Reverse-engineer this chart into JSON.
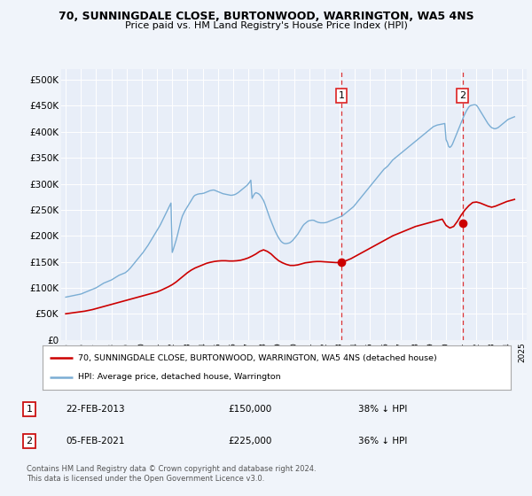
{
  "title1": "70, SUNNINGDALE CLOSE, BURTONWOOD, WARRINGTON, WA5 4NS",
  "title2": "Price paid vs. HM Land Registry's House Price Index (HPI)",
  "bg_color": "#f0f4fa",
  "plot_bg": "#e8eef8",
  "red_color": "#cc0000",
  "blue_color": "#7aadd4",
  "vline_color": "#dd2222",
  "grid_color": "#ffffff",
  "ylim": [
    0,
    520000
  ],
  "yticks": [
    0,
    50000,
    100000,
    150000,
    200000,
    250000,
    300000,
    350000,
    400000,
    450000,
    500000
  ],
  "ytick_labels": [
    "£0",
    "£50K",
    "£100K",
    "£150K",
    "£200K",
    "£250K",
    "£300K",
    "£350K",
    "£400K",
    "£450K",
    "£500K"
  ],
  "sale1_date": 2013.13,
  "sale1_price": 150000,
  "sale2_date": 2021.09,
  "sale2_price": 225000,
  "legend_label1": "70, SUNNINGDALE CLOSE, BURTONWOOD, WARRINGTON, WA5 4NS (detached house)",
  "legend_label2": "HPI: Average price, detached house, Warrington",
  "footnote": "Contains HM Land Registry data © Crown copyright and database right 2024.\nThis data is licensed under the Open Government Licence v3.0.",
  "table_entries": [
    {
      "num": "1",
      "date": "22-FEB-2013",
      "price": "£150,000",
      "hpi": "38% ↓ HPI"
    },
    {
      "num": "2",
      "date": "05-FEB-2021",
      "price": "£225,000",
      "hpi": "36% ↓ HPI"
    }
  ],
  "hpi_years": [
    1995.0,
    1995.083,
    1995.167,
    1995.25,
    1995.333,
    1995.417,
    1995.5,
    1995.583,
    1995.667,
    1995.75,
    1995.833,
    1995.917,
    1996.0,
    1996.083,
    1996.167,
    1996.25,
    1996.333,
    1996.417,
    1996.5,
    1996.583,
    1996.667,
    1996.75,
    1996.833,
    1996.917,
    1997.0,
    1997.083,
    1997.167,
    1997.25,
    1997.333,
    1997.417,
    1997.5,
    1997.583,
    1997.667,
    1997.75,
    1997.833,
    1997.917,
    1998.0,
    1998.083,
    1998.167,
    1998.25,
    1998.333,
    1998.417,
    1998.5,
    1998.583,
    1998.667,
    1998.75,
    1998.833,
    1998.917,
    1999.0,
    1999.083,
    1999.167,
    1999.25,
    1999.333,
    1999.417,
    1999.5,
    1999.583,
    1999.667,
    1999.75,
    1999.833,
    1999.917,
    2000.0,
    2000.083,
    2000.167,
    2000.25,
    2000.333,
    2000.417,
    2000.5,
    2000.583,
    2000.667,
    2000.75,
    2000.833,
    2000.917,
    2001.0,
    2001.083,
    2001.167,
    2001.25,
    2001.333,
    2001.417,
    2001.5,
    2001.583,
    2001.667,
    2001.75,
    2001.833,
    2001.917,
    2002.0,
    2002.083,
    2002.167,
    2002.25,
    2002.333,
    2002.417,
    2002.5,
    2002.583,
    2002.667,
    2002.75,
    2002.833,
    2002.917,
    2003.0,
    2003.083,
    2003.167,
    2003.25,
    2003.333,
    2003.417,
    2003.5,
    2003.583,
    2003.667,
    2003.75,
    2003.833,
    2003.917,
    2004.0,
    2004.083,
    2004.167,
    2004.25,
    2004.333,
    2004.417,
    2004.5,
    2004.583,
    2004.667,
    2004.75,
    2004.833,
    2004.917,
    2005.0,
    2005.083,
    2005.167,
    2005.25,
    2005.333,
    2005.417,
    2005.5,
    2005.583,
    2005.667,
    2005.75,
    2005.833,
    2005.917,
    2006.0,
    2006.083,
    2006.167,
    2006.25,
    2006.333,
    2006.417,
    2006.5,
    2006.583,
    2006.667,
    2006.75,
    2006.833,
    2006.917,
    2007.0,
    2007.083,
    2007.167,
    2007.25,
    2007.333,
    2007.417,
    2007.5,
    2007.583,
    2007.667,
    2007.75,
    2007.833,
    2007.917,
    2008.0,
    2008.083,
    2008.167,
    2008.25,
    2008.333,
    2008.417,
    2008.5,
    2008.583,
    2008.667,
    2008.75,
    2008.833,
    2008.917,
    2009.0,
    2009.083,
    2009.167,
    2009.25,
    2009.333,
    2009.417,
    2009.5,
    2009.583,
    2009.667,
    2009.75,
    2009.833,
    2009.917,
    2010.0,
    2010.083,
    2010.167,
    2010.25,
    2010.333,
    2010.417,
    2010.5,
    2010.583,
    2010.667,
    2010.75,
    2010.833,
    2010.917,
    2011.0,
    2011.083,
    2011.167,
    2011.25,
    2011.333,
    2011.417,
    2011.5,
    2011.583,
    2011.667,
    2011.75,
    2011.833,
    2011.917,
    2012.0,
    2012.083,
    2012.167,
    2012.25,
    2012.333,
    2012.417,
    2012.5,
    2012.583,
    2012.667,
    2012.75,
    2012.833,
    2012.917,
    2013.0,
    2013.083,
    2013.167,
    2013.25,
    2013.333,
    2013.417,
    2013.5,
    2013.583,
    2013.667,
    2013.75,
    2013.833,
    2013.917,
    2014.0,
    2014.083,
    2014.167,
    2014.25,
    2014.333,
    2014.417,
    2014.5,
    2014.583,
    2014.667,
    2014.75,
    2014.833,
    2014.917,
    2015.0,
    2015.083,
    2015.167,
    2015.25,
    2015.333,
    2015.417,
    2015.5,
    2015.583,
    2015.667,
    2015.75,
    2015.833,
    2015.917,
    2016.0,
    2016.083,
    2016.167,
    2016.25,
    2016.333,
    2016.417,
    2016.5,
    2016.583,
    2016.667,
    2016.75,
    2016.833,
    2016.917,
    2017.0,
    2017.083,
    2017.167,
    2017.25,
    2017.333,
    2017.417,
    2017.5,
    2017.583,
    2017.667,
    2017.75,
    2017.833,
    2017.917,
    2018.0,
    2018.083,
    2018.167,
    2018.25,
    2018.333,
    2018.417,
    2018.5,
    2018.583,
    2018.667,
    2018.75,
    2018.833,
    2018.917,
    2019.0,
    2019.083,
    2019.167,
    2019.25,
    2019.333,
    2019.417,
    2019.5,
    2019.583,
    2019.667,
    2019.75,
    2019.833,
    2019.917,
    2020.0,
    2020.083,
    2020.167,
    2020.25,
    2020.333,
    2020.417,
    2020.5,
    2020.583,
    2020.667,
    2020.75,
    2020.833,
    2020.917,
    2021.0,
    2021.083,
    2021.167,
    2021.25,
    2021.333,
    2021.417,
    2021.5,
    2021.583,
    2021.667,
    2021.75,
    2021.833,
    2021.917,
    2022.0,
    2022.083,
    2022.167,
    2022.25,
    2022.333,
    2022.417,
    2022.5,
    2022.583,
    2022.667,
    2022.75,
    2022.833,
    2022.917,
    2023.0,
    2023.083,
    2023.167,
    2023.25,
    2023.333,
    2023.417,
    2023.5,
    2023.583,
    2023.667,
    2023.75,
    2023.833,
    2023.917,
    2024.0,
    2024.083,
    2024.167,
    2024.25,
    2024.333,
    2024.417,
    2024.5
  ],
  "hpi_values": [
    82000,
    82500,
    83000,
    83500,
    84000,
    84500,
    85000,
    85500,
    86000,
    86500,
    87000,
    87500,
    88000,
    89000,
    90000,
    91000,
    92000,
    93000,
    94000,
    95000,
    96000,
    97000,
    98000,
    99000,
    100000,
    101500,
    103000,
    104500,
    106000,
    107500,
    109000,
    110000,
    111000,
    112000,
    113000,
    114000,
    115000,
    116500,
    118000,
    119500,
    121000,
    122500,
    124000,
    125000,
    126000,
    127000,
    128000,
    129000,
    131000,
    133000,
    135500,
    138000,
    141000,
    144000,
    147000,
    150000,
    153000,
    156000,
    159000,
    162000,
    165000,
    168000,
    171500,
    175000,
    178500,
    182000,
    186000,
    190000,
    194000,
    198000,
    202000,
    206000,
    210000,
    214000,
    218500,
    223000,
    228000,
    233000,
    238000,
    243000,
    248000,
    253000,
    258000,
    263000,
    168000,
    175000,
    183000,
    191000,
    200000,
    210000,
    220000,
    230000,
    238000,
    243000,
    248000,
    252000,
    256000,
    260000,
    264000,
    268000,
    272000,
    276000,
    278000,
    279000,
    280000,
    280500,
    281000,
    281000,
    281500,
    282000,
    283000,
    284000,
    285000,
    286000,
    287000,
    287500,
    288000,
    288000,
    287000,
    286000,
    285000,
    284000,
    283000,
    282000,
    281000,
    280500,
    280000,
    279500,
    279000,
    278500,
    278000,
    278000,
    278500,
    279000,
    280000,
    281500,
    283000,
    285000,
    287000,
    289000,
    291000,
    293000,
    295000,
    297000,
    300000,
    303000,
    307000,
    272000,
    277000,
    281000,
    283000,
    282000,
    281000,
    279000,
    276000,
    272000,
    268000,
    262000,
    255000,
    248000,
    241000,
    234000,
    228000,
    222000,
    216000,
    210000,
    205000,
    200000,
    196000,
    192000,
    189000,
    187000,
    185500,
    185000,
    185000,
    185500,
    186000,
    187000,
    189000,
    191000,
    194000,
    197000,
    200000,
    203000,
    207000,
    211000,
    215000,
    219000,
    222000,
    224000,
    226000,
    228000,
    229000,
    229500,
    230000,
    230000,
    229500,
    228000,
    227000,
    226000,
    225500,
    225000,
    225000,
    225000,
    225000,
    225500,
    226000,
    227000,
    228000,
    229000,
    230000,
    231000,
    232000,
    233000,
    234000,
    235000,
    236000,
    237000,
    238000,
    240000,
    242000,
    244000,
    246000,
    248000,
    250000,
    252000,
    254000,
    256000,
    259000,
    262000,
    265000,
    268000,
    271000,
    274000,
    277000,
    280000,
    283000,
    286000,
    289000,
    292000,
    295000,
    298000,
    301000,
    304000,
    307000,
    310000,
    313000,
    316000,
    319000,
    322000,
    325000,
    328000,
    330000,
    332000,
    334000,
    337000,
    340000,
    343000,
    346000,
    348000,
    350000,
    352000,
    354000,
    356000,
    358000,
    360000,
    362000,
    364000,
    366000,
    368000,
    370000,
    372000,
    374000,
    376000,
    378000,
    380000,
    382000,
    384000,
    386000,
    388000,
    390000,
    392000,
    394000,
    396000,
    398000,
    400000,
    402000,
    404000,
    406000,
    408000,
    410000,
    411000,
    412000,
    413000,
    413500,
    414000,
    414500,
    415000,
    415500,
    416000,
    385000,
    380000,
    372000,
    370000,
    372000,
    376000,
    382000,
    388000,
    394000,
    400000,
    406000,
    412000,
    418000,
    424000,
    430000,
    435000,
    440000,
    444000,
    448000,
    450000,
    451000,
    451500,
    452000,
    452000,
    451000,
    448000,
    444000,
    440000,
    436000,
    432000,
    428000,
    424000,
    420000,
    416000,
    413000,
    410000,
    408000,
    407000,
    406000,
    406000,
    407000,
    408000,
    410000,
    412000,
    414000,
    416000,
    418000,
    420000,
    422000,
    424000,
    425000,
    426000,
    427000,
    428000,
    429000
  ],
  "prop_years": [
    1995.0,
    1995.25,
    1995.5,
    1995.75,
    1996.0,
    1996.25,
    1996.5,
    1996.75,
    1997.0,
    1997.25,
    1997.5,
    1997.75,
    1998.0,
    1998.25,
    1998.5,
    1998.75,
    1999.0,
    1999.25,
    1999.5,
    1999.75,
    2000.0,
    2000.25,
    2000.5,
    2000.75,
    2001.0,
    2001.25,
    2001.5,
    2001.75,
    2002.0,
    2002.25,
    2002.5,
    2002.75,
    2003.0,
    2003.25,
    2003.5,
    2003.75,
    2004.0,
    2004.25,
    2004.5,
    2004.75,
    2005.0,
    2005.25,
    2005.5,
    2005.75,
    2006.0,
    2006.25,
    2006.5,
    2006.75,
    2007.0,
    2007.25,
    2007.5,
    2007.75,
    2008.0,
    2008.25,
    2008.5,
    2008.75,
    2009.0,
    2009.25,
    2009.5,
    2009.75,
    2010.0,
    2010.25,
    2010.5,
    2010.75,
    2011.0,
    2011.25,
    2011.5,
    2011.75,
    2012.0,
    2012.25,
    2012.5,
    2012.75,
    2013.0,
    2013.25,
    2013.5,
    2013.75,
    2014.0,
    2014.25,
    2014.5,
    2014.75,
    2015.0,
    2015.25,
    2015.5,
    2015.75,
    2016.0,
    2016.25,
    2016.5,
    2016.75,
    2017.0,
    2017.25,
    2017.5,
    2017.75,
    2018.0,
    2018.25,
    2018.5,
    2018.75,
    2019.0,
    2019.25,
    2019.5,
    2019.75,
    2020.0,
    2020.25,
    2020.5,
    2020.75,
    2021.0,
    2021.25,
    2021.5,
    2021.75,
    2022.0,
    2022.25,
    2022.5,
    2022.75,
    2023.0,
    2023.25,
    2023.5,
    2023.75,
    2024.0,
    2024.25,
    2024.5
  ],
  "prop_values": [
    50000,
    51000,
    52000,
    53000,
    54000,
    55000,
    56500,
    58000,
    60000,
    62000,
    64000,
    66000,
    68000,
    70000,
    72000,
    74000,
    76000,
    78000,
    80000,
    82000,
    84000,
    86000,
    88000,
    90000,
    92000,
    95000,
    98500,
    102000,
    106000,
    111000,
    117000,
    123000,
    129000,
    134000,
    138000,
    141000,
    144000,
    147000,
    149000,
    150500,
    151500,
    152000,
    152000,
    151500,
    151500,
    152000,
    153000,
    155000,
    157500,
    161000,
    165000,
    170000,
    173000,
    170000,
    165000,
    158000,
    152000,
    148000,
    145000,
    143000,
    143000,
    144000,
    146000,
    148000,
    149000,
    150000,
    150500,
    150500,
    150000,
    149500,
    149000,
    148500,
    148500,
    150000,
    153000,
    156000,
    160000,
    164000,
    168000,
    172000,
    176000,
    180000,
    184000,
    188000,
    192000,
    196000,
    200000,
    203000,
    206000,
    209000,
    212000,
    215000,
    218000,
    220000,
    222000,
    224000,
    226000,
    228000,
    230000,
    232000,
    220000,
    215000,
    218000,
    228000,
    240000,
    250000,
    258000,
    264000,
    265000,
    263000,
    260000,
    257000,
    255000,
    257000,
    260000,
    263000,
    266000,
    268000,
    270000
  ]
}
